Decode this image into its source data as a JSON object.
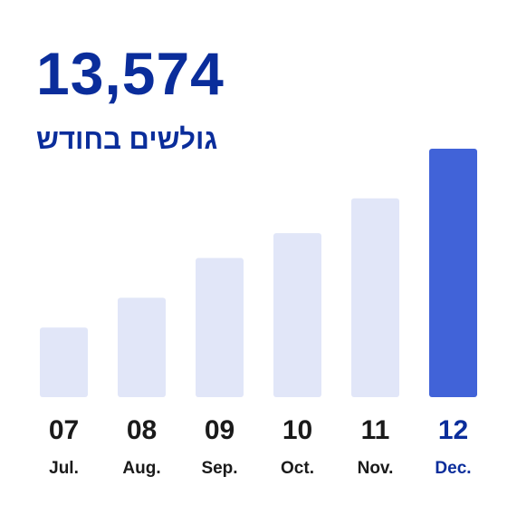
{
  "headline": {
    "value": "13,574",
    "subtitle": "גולשים בחודש"
  },
  "colors": {
    "headline": "#0a2d9b",
    "bar_default": "#e1e6f8",
    "bar_highlight": "#4163d8",
    "label_default": "#1a1a1a",
    "label_highlight": "#0a2d9b"
  },
  "chart_data": {
    "type": "bar",
    "categories": [
      "07",
      "08",
      "09",
      "10",
      "11",
      "12"
    ],
    "month_labels": [
      "Jul.",
      "Aug.",
      "Sep.",
      "Oct.",
      "Nov.",
      "Dec."
    ],
    "values": [
      28,
      40,
      56,
      66,
      80,
      100
    ],
    "highlight_index": 5,
    "ylim": [
      0,
      100
    ],
    "grid": false,
    "title": "",
    "xlabel": "",
    "ylabel": ""
  }
}
